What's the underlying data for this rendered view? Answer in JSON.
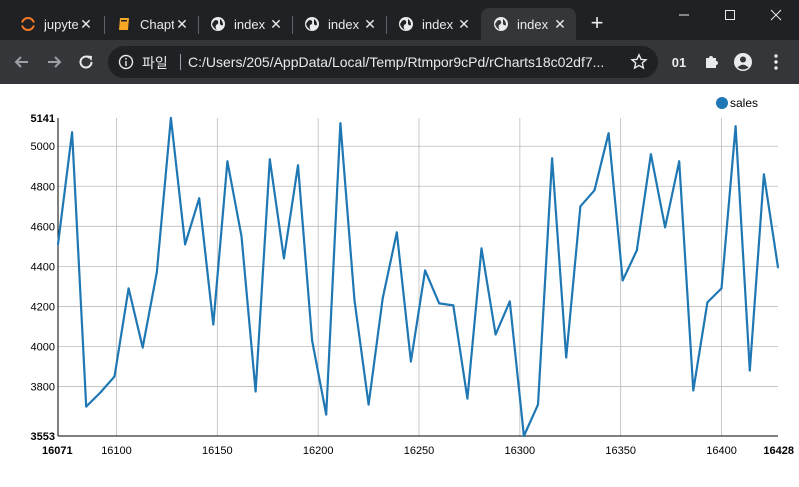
{
  "browser": {
    "tabs": [
      {
        "title": "jupyter",
        "icon": "jupyter-icon",
        "active": false
      },
      {
        "title": "Chapter",
        "icon": "book-icon",
        "active": false
      },
      {
        "title": "index",
        "icon": "globe-icon",
        "active": false
      },
      {
        "title": "index",
        "icon": "globe-icon",
        "active": false
      },
      {
        "title": "index",
        "icon": "globe-icon",
        "active": false
      },
      {
        "title": "index",
        "icon": "globe-icon",
        "active": true
      }
    ],
    "site_label": "파일",
    "url": "C:/Users/205/AppData/Local/Temp/Rtmpor9cPd/rCharts18c02df7...",
    "profile_badge": "01",
    "colors": {
      "frame": "#202124",
      "toolbar": "#35363a",
      "text": "#e8eaed"
    }
  },
  "chart_data": {
    "type": "line",
    "series": [
      {
        "name": "sales",
        "color": "#1f77b4",
        "x": [
          16071,
          16078,
          16085,
          16092,
          16099,
          16106,
          16113,
          16120,
          16127,
          16134,
          16141,
          16148,
          16155,
          16162,
          16169,
          16176,
          16183,
          16190,
          16197,
          16204,
          16211,
          16218,
          16225,
          16232,
          16239,
          16246,
          16253,
          16260,
          16267,
          16274,
          16281,
          16288,
          16295,
          16302,
          16309,
          16316,
          16323,
          16330,
          16337,
          16344,
          16351,
          16358,
          16365,
          16372,
          16379,
          16386,
          16393,
          16400,
          16407,
          16414,
          16421,
          16428
        ],
        "values": [
          4510,
          5070,
          3700,
          3770,
          3850,
          4290,
          3995,
          4370,
          5141,
          4510,
          4740,
          4110,
          4925,
          4550,
          3775,
          4935,
          4440,
          4905,
          4030,
          3660,
          5115,
          4230,
          3710,
          4240,
          4570,
          3925,
          4380,
          4215,
          4205,
          3740,
          4490,
          4060,
          4225,
          3553,
          3710,
          4940,
          3945,
          4700,
          4780,
          5065,
          4330,
          4480,
          4960,
          4595,
          4925,
          3780,
          4220,
          4290,
          5100,
          3880,
          4860,
          4395
        ]
      }
    ],
    "xlim": [
      16071,
      16428
    ],
    "ylim": [
      3553,
      5141
    ],
    "x_ticks": [
      "16071",
      "16100",
      "16150",
      "16200",
      "16250",
      "16300",
      "16350",
      "16400",
      "16428"
    ],
    "y_ticks": [
      "3553",
      "3800",
      "4000",
      "4200",
      "4400",
      "4600",
      "4800",
      "5000",
      "5141"
    ],
    "legend": [
      "sales"
    ],
    "legend_position": "top-right",
    "grid": true
  }
}
